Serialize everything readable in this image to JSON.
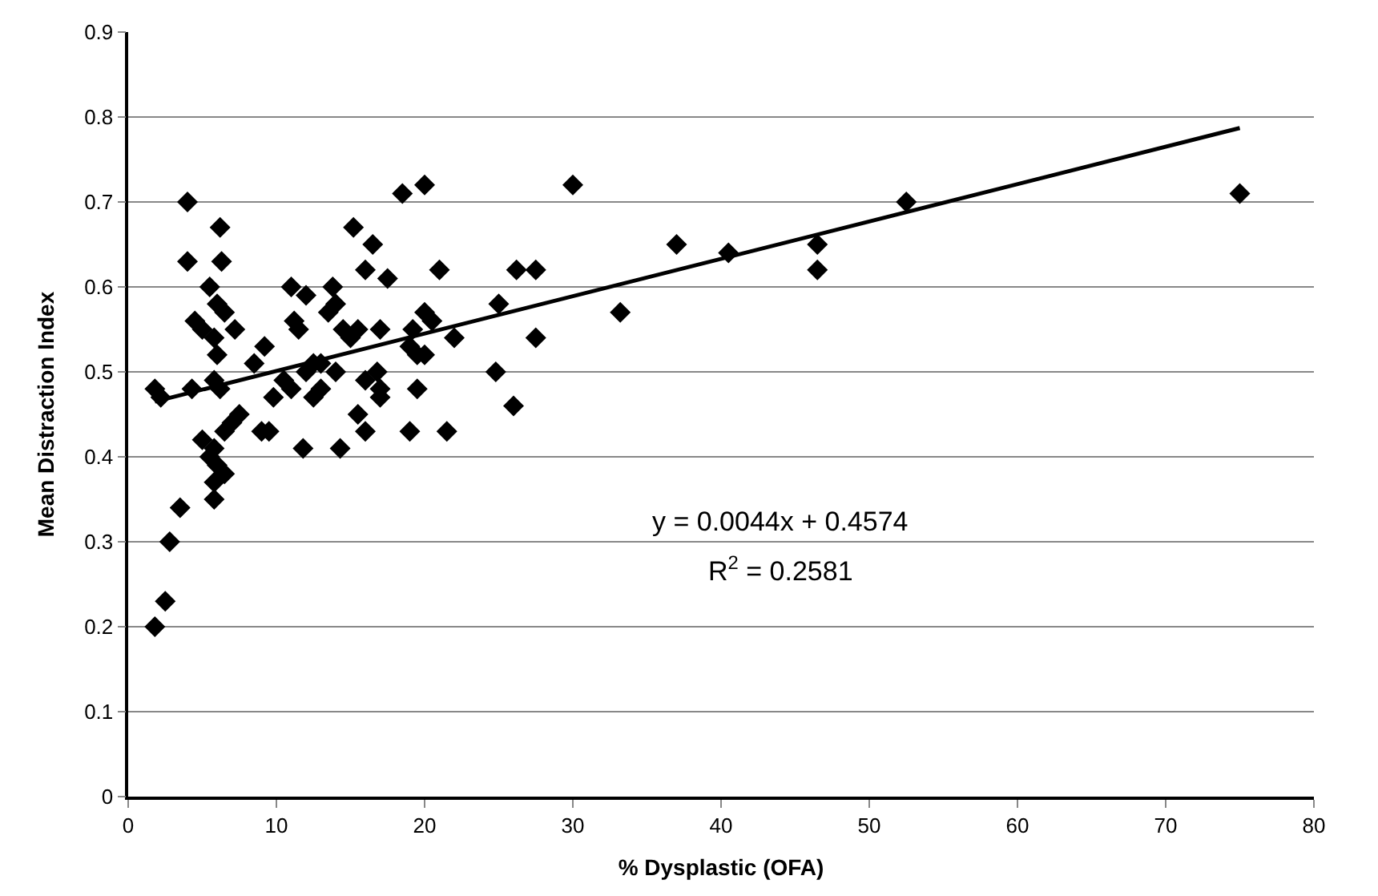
{
  "chart_data": {
    "type": "scatter",
    "xlabel": "% Dysplastic (OFA)",
    "ylabel": "Mean Distraction Index",
    "xlim": [
      0,
      80
    ],
    "xticks": [
      0,
      10,
      20,
      30,
      40,
      50,
      60,
      70,
      80
    ],
    "ylim": [
      0,
      0.9
    ],
    "yticks": [
      0,
      0.1,
      0.2,
      0.3,
      0.4,
      0.5,
      0.6,
      0.7,
      0.8,
      0.9
    ],
    "grid": "y",
    "legend": false,
    "marker": "diamond",
    "annotations": [
      "y = 0.0044x + 0.4574",
      "R$^{2}$ = 0.2581"
    ],
    "series": [
      {
        "color": "#000000",
        "x": [
          1.8,
          2.5,
          2.8,
          3.5,
          1.8,
          2.2,
          4,
          6.2,
          4,
          6.3,
          5.5,
          4.5,
          5,
          6,
          6.5,
          5.8,
          6,
          7.2,
          4.3,
          5.8,
          6.2,
          5,
          5.5,
          5.8,
          6,
          6.5,
          5.8,
          5.8,
          6.5,
          7,
          7.5,
          8.5,
          9,
          9.5,
          9.2,
          9.8,
          10.5,
          11,
          11.2,
          11.5,
          12,
          12.5,
          11,
          12,
          11.8,
          12.5,
          13,
          13,
          13.5,
          13.8,
          14,
          14,
          14.3,
          14.5,
          15,
          15.2,
          15.5,
          15.5,
          16,
          16,
          16.5,
          16,
          16.8,
          17,
          17,
          17,
          17.5,
          18.5,
          19,
          19,
          19.2,
          19.5,
          19.5,
          20,
          20,
          20.5,
          20,
          21,
          21.5,
          22,
          24.8,
          25,
          26.2,
          26,
          27.5,
          27.5,
          30,
          33.2,
          37,
          40.5,
          46.5,
          46.5,
          52.5,
          75
        ],
        "values": [
          0.2,
          0.23,
          0.3,
          0.34,
          0.48,
          0.47,
          0.7,
          0.67,
          0.63,
          0.63,
          0.6,
          0.56,
          0.55,
          0.58,
          0.57,
          0.54,
          0.52,
          0.55,
          0.48,
          0.49,
          0.48,
          0.42,
          0.4,
          0.41,
          0.39,
          0.38,
          0.37,
          0.35,
          0.43,
          0.44,
          0.45,
          0.51,
          0.43,
          0.43,
          0.53,
          0.47,
          0.49,
          0.6,
          0.56,
          0.55,
          0.59,
          0.51,
          0.48,
          0.5,
          0.41,
          0.47,
          0.48,
          0.51,
          0.57,
          0.6,
          0.58,
          0.5,
          0.41,
          0.55,
          0.54,
          0.67,
          0.45,
          0.55,
          0.62,
          0.49,
          0.65,
          0.43,
          0.5,
          0.47,
          0.48,
          0.55,
          0.61,
          0.71,
          0.43,
          0.53,
          0.55,
          0.48,
          0.52,
          0.72,
          0.57,
          0.56,
          0.52,
          0.62,
          0.43,
          0.54,
          0.5,
          0.58,
          0.62,
          0.46,
          0.62,
          0.54,
          0.72,
          0.57,
          0.65,
          0.64,
          0.65,
          0.62,
          0.7,
          0.71
        ]
      },
      {
        "type": "line",
        "color": "#000000",
        "marker": "none",
        "line_style": "solid",
        "x": [
          1.8,
          75
        ],
        "values": [
          0.465,
          0.787
        ]
      }
    ]
  }
}
